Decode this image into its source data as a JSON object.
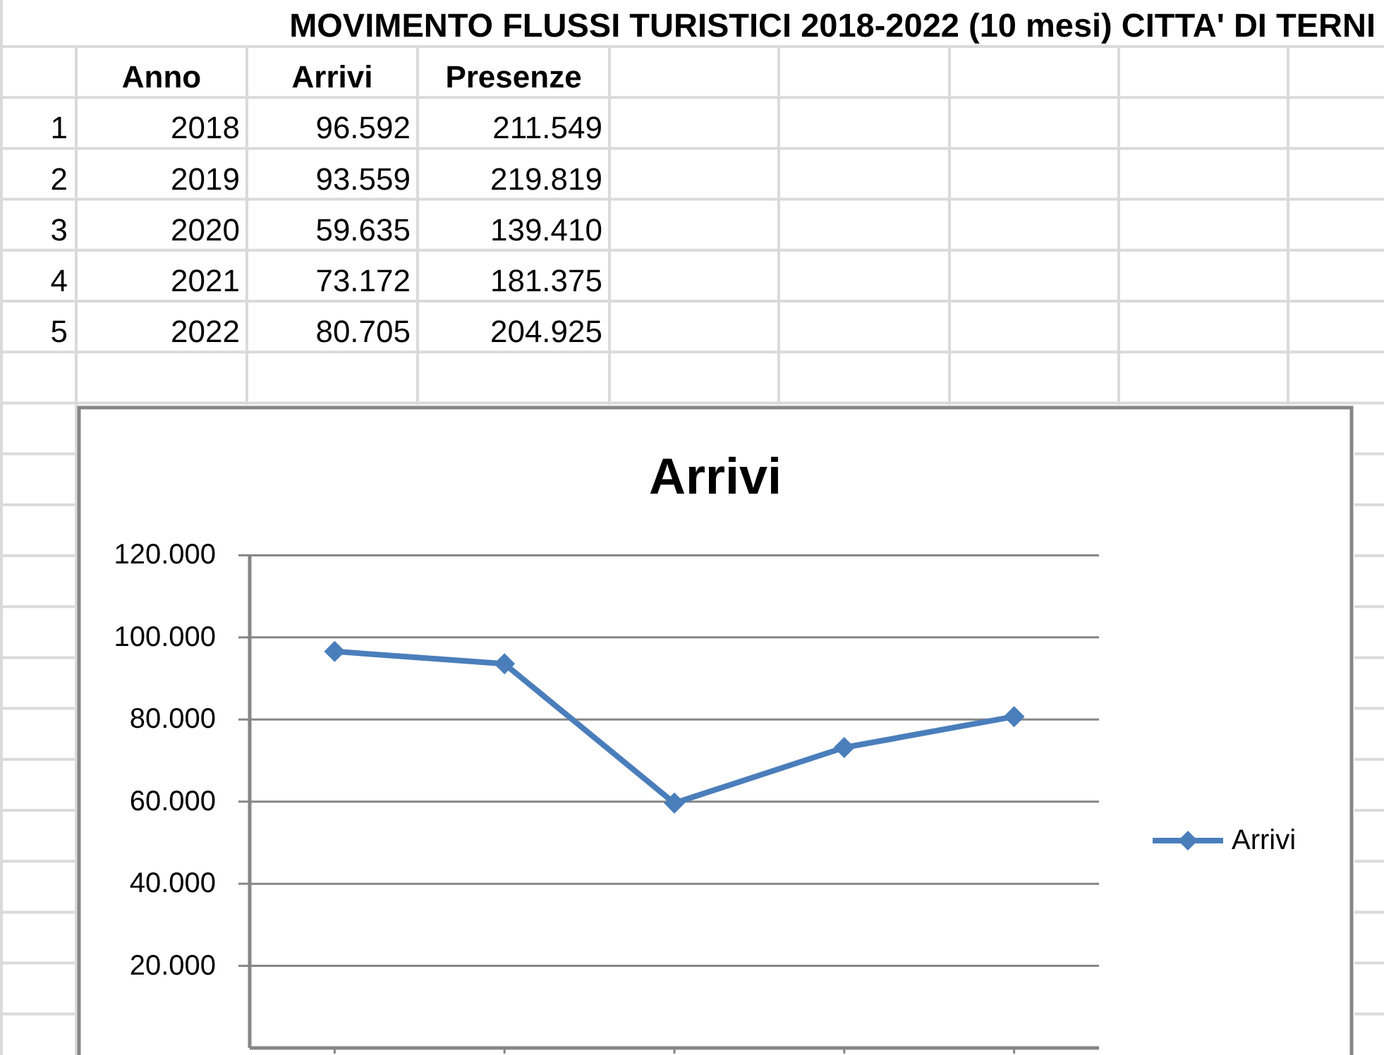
{
  "chart_data": {
    "type": "line",
    "title": "Arrivi",
    "categories": [
      null,
      null,
      null,
      null,
      null
    ],
    "series": [
      {
        "name": "Arrivi",
        "color": "#4a7ebb",
        "values": [
          96592,
          93559,
          59635,
          73172,
          80705
        ]
      }
    ],
    "ylim": [
      0,
      120000
    ],
    "yticks": [
      {
        "value": 20000,
        "label": "20.000"
      },
      {
        "value": 40000,
        "label": "40.000"
      },
      {
        "value": 60000,
        "label": "60.000"
      },
      {
        "value": 80000,
        "label": "80.000"
      },
      {
        "value": 100000,
        "label": "100.000"
      },
      {
        "value": 120000,
        "label": "120.000"
      }
    ],
    "grid": "y",
    "legend": "right",
    "marker": "diamond",
    "annotations": [
      "MOVIMENTO FLUSSI TURISTICI 2018-2022 (10 mesi) CITTA' DI TERNI",
      "Anno",
      "Arrivi",
      "Presenze",
      "1",
      "2018",
      "96.592",
      "211.549",
      "2",
      "2019",
      "93.559",
      "219.819",
      "3",
      "2020",
      "59.635",
      "139.410",
      "4",
      "2021",
      "73.172",
      "181.375",
      "5",
      "2022",
      "80.705",
      "204.925"
    ]
  }
}
